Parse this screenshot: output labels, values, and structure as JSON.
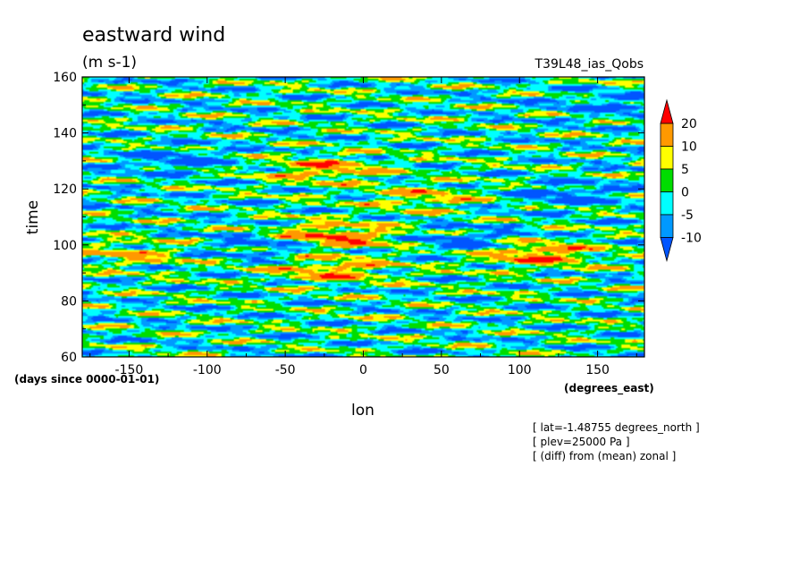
{
  "chart_data": {
    "type": "heatmap",
    "title": "eastward wind",
    "units": "(m s-1)",
    "experiment": "T39L48_ias_Qobs",
    "xlabel": "lon",
    "ylabel": "time",
    "x_units": "(degrees_east)",
    "y_units": "(days since 0000-01-01)",
    "xlim": [
      -180,
      180
    ],
    "ylim": [
      60,
      160
    ],
    "x_ticks": [
      -150,
      -100,
      -50,
      0,
      50,
      100,
      150
    ],
    "y_ticks": [
      60,
      80,
      100,
      120,
      140,
      160
    ],
    "x_tick_labels": [
      "-150",
      "-100",
      "-50",
      "0",
      "50",
      "100",
      "150"
    ],
    "y_tick_labels": [
      "60",
      "80",
      "100",
      "120",
      "140",
      "160"
    ],
    "contour_levels": [
      -10,
      -5,
      0,
      5,
      10,
      20
    ],
    "colorbar": {
      "labels": [
        "20",
        "10",
        "5",
        "0",
        "-5",
        "-10"
      ],
      "colors": [
        "#ff0000",
        "#ff9900",
        "#ffff00",
        "#00dd00",
        "#00ffff",
        "#0099ff",
        "#0055ff"
      ],
      "extend": "both"
    },
    "notes": [
      "[ lat=-1.48755 degrees_north ]",
      "[ plev=25000 Pa ]",
      "[ (diff) from (mean) zonal ]"
    ],
    "features": [
      {
        "lon": -20,
        "time": 103,
        "value": 22
      },
      {
        "lon": -25,
        "time": 127,
        "value": 15
      },
      {
        "lon": 110,
        "time": 97,
        "value": 20
      },
      {
        "lon": 40,
        "time": 117,
        "value": 11
      },
      {
        "lon": -20,
        "time": 91,
        "value": 15
      },
      {
        "lon": -150,
        "time": 97,
        "value": 10
      },
      {
        "lon": -60,
        "time": 100,
        "value": -11
      },
      {
        "lon": 70,
        "time": 101,
        "value": -11
      },
      {
        "lon": -120,
        "time": 130,
        "value": -10
      },
      {
        "lon": 130,
        "time": 118,
        "value": -10
      },
      {
        "lon": 160,
        "time": 150,
        "value": -9
      }
    ]
  }
}
